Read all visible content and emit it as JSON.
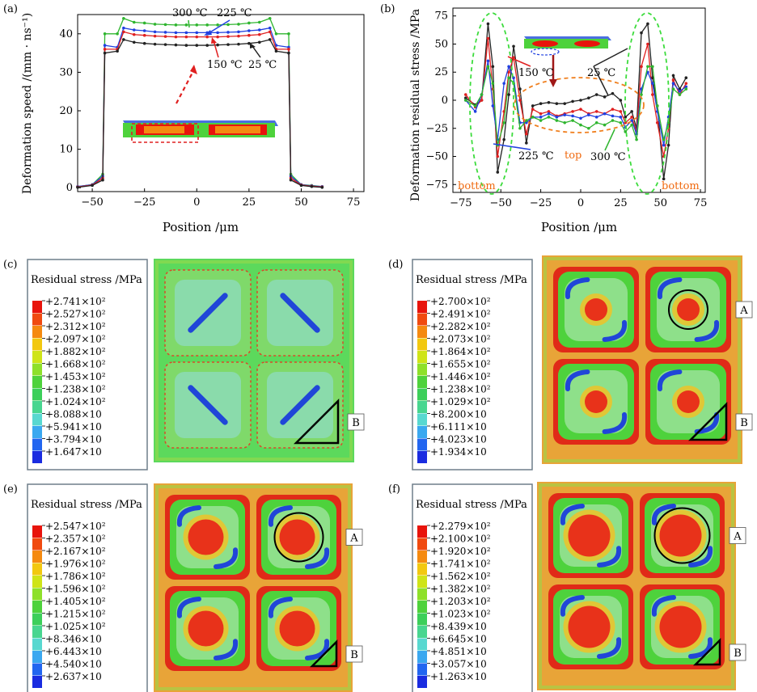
{
  "chart_data": [
    {
      "panel": "(a)",
      "type": "line",
      "xlabel": "Position /μm",
      "ylabel": "Deformation speed /(mm · ns⁻¹)",
      "xlim": [
        -57,
        80
      ],
      "ylim": [
        -1,
        45
      ],
      "xticks": [
        "−50",
        "−25",
        "0",
        "25",
        "50",
        "75"
      ],
      "yticks": [
        "0",
        "10",
        "20",
        "30",
        "40"
      ],
      "x": [
        -57,
        -50,
        -45,
        -44,
        -38,
        -35,
        -30,
        -25,
        -20,
        -15,
        -10,
        -5,
        0,
        5,
        10,
        15,
        20,
        25,
        30,
        35,
        38,
        44,
        45,
        50,
        55,
        60
      ],
      "series": [
        {
          "name": "300 ℃",
          "color": "#2fb52f",
          "values": [
            0.3,
            0.8,
            3.5,
            40,
            40,
            44,
            43,
            42.8,
            42.5,
            42.4,
            42.3,
            42.3,
            42.3,
            42.3,
            42.3,
            42.4,
            42.5,
            42.8,
            43,
            44,
            40,
            40,
            3.5,
            0.8,
            0.6,
            0.3
          ]
        },
        {
          "name": "225 ℃",
          "color": "#2040e0",
          "values": [
            0.3,
            0.8,
            3,
            37,
            36.5,
            41.5,
            41,
            40.8,
            40.5,
            40.4,
            40.3,
            40.3,
            40.3,
            40.3,
            40.3,
            40.4,
            40.5,
            40.8,
            41,
            41.5,
            37,
            36.5,
            3,
            0.8,
            0.5,
            0.3
          ]
        },
        {
          "name": "150 ℃",
          "color": "#e02020",
          "values": [
            0.2,
            0.7,
            2.5,
            36,
            36,
            40.5,
            39.8,
            39.6,
            39.4,
            39.3,
            39.2,
            39.2,
            39.2,
            39.2,
            39.2,
            39.3,
            39.4,
            39.6,
            39.8,
            40.5,
            36,
            36,
            2.5,
            0.7,
            0.4,
            0.2
          ]
        },
        {
          "name": "25 ℃",
          "color": "#222222",
          "values": [
            0.1,
            0.6,
            2,
            35,
            35.5,
            38.5,
            37.8,
            37.5,
            37.3,
            37.2,
            37.1,
            37,
            37,
            37,
            37.1,
            37.2,
            37.3,
            37.5,
            37.8,
            38.5,
            35.5,
            35,
            2,
            0.6,
            0.3,
            0.1
          ]
        }
      ],
      "annotations": [
        "300 ℃",
        "225 ℃",
        "150 ℃",
        "25 ℃"
      ]
    },
    {
      "panel": "(b)",
      "type": "line",
      "xlabel": "Position /μm",
      "ylabel": "Deformation residual stress /MPa",
      "xlim": [
        -80,
        78
      ],
      "ylim": [
        -82,
        82
      ],
      "xticks": [
        "−75",
        "−50",
        "−25",
        "0",
        "25",
        "50",
        "75"
      ],
      "yticks": [
        "−75",
        "−50",
        "−25",
        "0",
        "25",
        "50",
        "75"
      ],
      "x": [
        -72,
        -66,
        -62,
        -58,
        -55,
        -52,
        -48,
        -45,
        -42,
        -38,
        -34,
        -30,
        -25,
        -20,
        -15,
        -10,
        -5,
        0,
        5,
        10,
        15,
        20,
        25,
        28,
        32,
        35,
        38,
        42,
        45,
        48,
        52,
        55,
        58,
        62,
        66
      ],
      "series": [
        {
          "name": "25 ℃",
          "color": "#222222",
          "values": [
            2,
            -4,
            0,
            68,
            30,
            -64,
            -35,
            5,
            48,
            10,
            -38,
            -5,
            -3,
            -2,
            -3,
            -3,
            -1,
            0,
            2,
            5,
            3,
            6,
            0,
            -15,
            -10,
            -25,
            60,
            68,
            20,
            -5,
            -70,
            -40,
            22,
            10,
            20
          ]
        },
        {
          "name": "150 ℃",
          "color": "#e02020",
          "values": [
            5,
            -6,
            0,
            55,
            10,
            -50,
            -10,
            25,
            38,
            0,
            -30,
            -8,
            -12,
            -10,
            -14,
            -12,
            -10,
            -8,
            -12,
            -10,
            -12,
            -8,
            -10,
            -20,
            -15,
            -28,
            30,
            50,
            5,
            -20,
            -50,
            -25,
            18,
            5,
            15
          ]
        },
        {
          "name": "225 ℃",
          "color": "#2040e0",
          "values": [
            0,
            -10,
            5,
            35,
            -5,
            -35,
            15,
            30,
            20,
            -20,
            -20,
            -15,
            -15,
            -12,
            -15,
            -13,
            -14,
            -16,
            -13,
            -15,
            -12,
            -14,
            -15,
            -24,
            -18,
            -30,
            10,
            25,
            15,
            -10,
            -40,
            -15,
            15,
            8,
            12
          ]
        },
        {
          "name": "300 ℃",
          "color": "#2fb52f",
          "values": [
            0,
            -5,
            5,
            30,
            15,
            -40,
            -20,
            20,
            15,
            -25,
            -18,
            -15,
            -18,
            -15,
            -18,
            -20,
            -18,
            -22,
            -25,
            -20,
            -22,
            -18,
            -20,
            -28,
            -22,
            -35,
            5,
            30,
            30,
            -5,
            -35,
            -20,
            10,
            5,
            10
          ]
        }
      ],
      "annotations": [
        "150 ℃",
        "25 ℃",
        "225 ℃",
        "top",
        "300 ℃",
        "bottom",
        "bottom"
      ]
    }
  ],
  "panels": {
    "a": "(a)",
    "b": "(b)",
    "c": {
      "label": "(c)",
      "title": "Residual stress /MPa",
      "legend": [
        "+2.741×10²",
        "+2.527×10²",
        "+2.312×10²",
        "+2.097×10²",
        "+1.882×10²",
        "+1.668×10²",
        "+1.453×10²",
        "+1.238×10²",
        "+1.024×10²",
        "+8.088×10",
        "+5.941×10",
        "+3.794×10",
        "+1.647×10"
      ],
      "markers": [
        "B"
      ]
    },
    "d": {
      "label": "(d)",
      "title": "Residual stress /MPa",
      "legend": [
        "+2.700×10²",
        "+2.491×10²",
        "+2.282×10²",
        "+2.073×10²",
        "+1.864×10²",
        "+1.655×10²",
        "+1.446×10²",
        "+1.238×10²",
        "+1.029×10²",
        "+8.200×10",
        "+6.111×10",
        "+4.023×10",
        "+1.934×10"
      ],
      "markers": [
        "A",
        "B"
      ]
    },
    "e": {
      "label": "(e)",
      "title": "Residual stress /MPa",
      "legend": [
        "+2.547×10²",
        "+2.357×10²",
        "+2.167×10²",
        "+1.976×10²",
        "+1.786×10²",
        "+1.596×10²",
        "+1.405×10²",
        "+1.215×10²",
        "+1.025×10²",
        "+8.346×10",
        "+6.443×10",
        "+4.540×10",
        "+2.637×10"
      ],
      "markers": [
        "A",
        "B"
      ]
    },
    "f": {
      "label": "(f)",
      "title": "Residual stress /MPa",
      "legend": [
        "+2.279×10²",
        "+2.100×10²",
        "+1.920×10²",
        "+1.741×10²",
        "+1.562×10²",
        "+1.382×10²",
        "+1.203×10²",
        "+1.023×10²",
        "+8.439×10",
        "+6.645×10",
        "+4.851×10",
        "+3.057×10",
        "+1.263×10"
      ],
      "markers": [
        "A",
        "B"
      ]
    }
  },
  "legend_colors": [
    "#e8140c",
    "#f04a10",
    "#f58a10",
    "#f2c810",
    "#cfe418",
    "#8ee02a",
    "#4ed23c",
    "#3ccf5a",
    "#48d690",
    "#58d8d0",
    "#3aa8f0",
    "#2266f0",
    "#1a2ce0"
  ]
}
